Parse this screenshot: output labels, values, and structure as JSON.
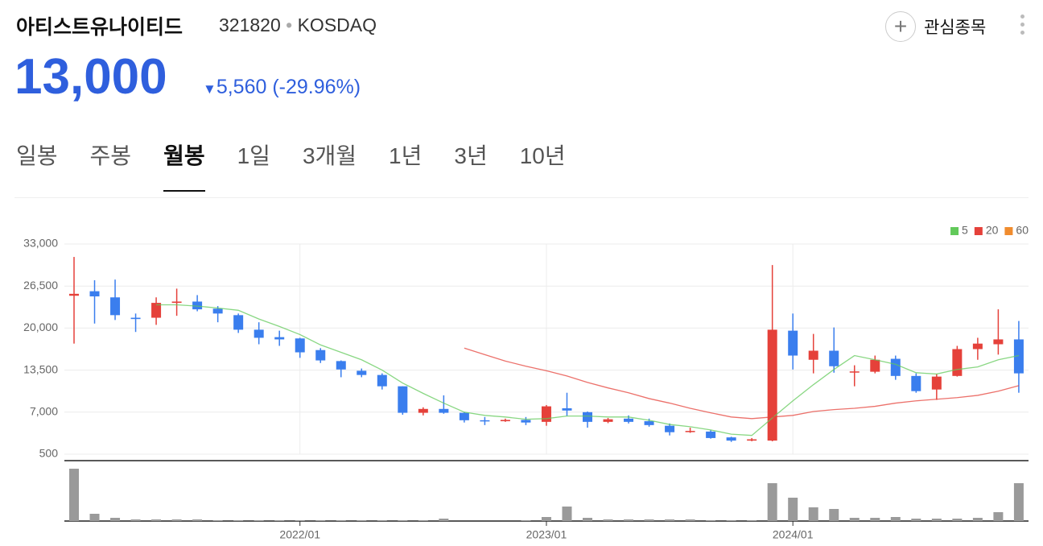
{
  "header": {
    "name": "아티스트유나이티드",
    "code": "321820",
    "market": "KOSDAQ",
    "watch": "관심종목",
    "price": "13,000",
    "change": "5,560",
    "change_pct": "(-29.96%)"
  },
  "tabs": [
    "일봉",
    "주봉",
    "월봉",
    "1일",
    "3개월",
    "1년",
    "3년",
    "10년"
  ],
  "active_tab": 2,
  "chart_data": {
    "type": "candlestick",
    "categories": [
      null,
      null,
      null,
      null,
      null,
      null,
      null,
      null,
      null,
      null,
      null,
      "2022/01",
      null,
      null,
      null,
      null,
      null,
      null,
      null,
      null,
      null,
      null,
      null,
      "2023/01",
      null,
      null,
      null,
      null,
      null,
      null,
      null,
      null,
      null,
      null,
      null,
      "2024/01",
      null,
      null,
      null,
      null,
      null,
      null,
      null,
      null,
      null,
      null,
      null
    ],
    "open": [
      25000,
      25700,
      24750,
      21600,
      21600,
      23900,
      24100,
      23000,
      22000,
      19750,
      18600,
      18400,
      16600,
      14900,
      13400,
      12750,
      11000,
      6900,
      7500,
      6900,
      5750,
      5600,
      5800,
      5500,
      7600,
      7000,
      5500,
      6000,
      5600,
      4900,
      4000,
      4000,
      3100,
      2600,
      2600,
      19600,
      15100,
      16500,
      13200,
      13250,
      15250,
      12600,
      10500,
      12600,
      16750,
      17500,
      18250
    ],
    "high": [
      31000,
      27400,
      27500,
      22250,
      24750,
      26100,
      25100,
      23400,
      22250,
      20900,
      19600,
      18500,
      16900,
      15000,
      13750,
      13000,
      11000,
      7750,
      9600,
      7000,
      6250,
      6000,
      6250,
      8100,
      10000,
      7100,
      6100,
      6500,
      6000,
      5250,
      4600,
      4200,
      3200,
      3000,
      29750,
      22250,
      19100,
      20100,
      14250,
      15750,
      15750,
      13000,
      12900,
      17250,
      18500,
      22900,
      21100
    ],
    "low": [
      17600,
      20700,
      21250,
      19400,
      20500,
      21900,
      22600,
      20900,
      19250,
      17500,
      17250,
      15400,
      14600,
      12400,
      12400,
      10500,
      6600,
      6500,
      6750,
      5400,
      5000,
      5500,
      5000,
      4900,
      6400,
      4600,
      5300,
      5250,
      4750,
      3400,
      3800,
      2900,
      2400,
      2500,
      2500,
      13600,
      13000,
      13100,
      11000,
      13000,
      12000,
      10000,
      8900,
      12500,
      15100,
      15900,
      10000
    ],
    "close": [
      25300,
      24900,
      22000,
      21400,
      23900,
      24100,
      22900,
      22250,
      19750,
      18500,
      18250,
      16250,
      15000,
      13600,
      12750,
      11000,
      6900,
      7500,
      6900,
      5750,
      5600,
      5800,
      5400,
      7900,
      7250,
      5500,
      5900,
      5500,
      5000,
      3900,
      4100,
      3000,
      2600,
      2800,
      19750,
      15750,
      16500,
      14100,
      13300,
      15100,
      12600,
      10250,
      12500,
      16750,
      17600,
      18250,
      13000
    ],
    "up_color": "#e5413a",
    "down_color": "#3a7eee",
    "ma": [
      {
        "name": "5",
        "color": "#62c95a",
        "values": [
          null,
          null,
          null,
          null,
          23600,
          23600,
          23400,
          23100,
          22750,
          21400,
          20250,
          19000,
          17400,
          16250,
          15100,
          13500,
          11500,
          9900,
          8400,
          7000,
          6500,
          6250,
          5900,
          6000,
          6400,
          6400,
          6250,
          6250,
          5750,
          5100,
          4750,
          4250,
          3600,
          3400,
          6100,
          8750,
          11250,
          13600,
          15750,
          15100,
          14400,
          13100,
          12900,
          13600,
          14000,
          15100,
          15750
        ]
      },
      {
        "name": "20",
        "color": "#e5413a",
        "values": [
          null,
          null,
          null,
          null,
          null,
          null,
          null,
          null,
          null,
          null,
          null,
          null,
          null,
          null,
          null,
          null,
          null,
          null,
          null,
          16900,
          15900,
          14900,
          14100,
          13400,
          12600,
          11600,
          10750,
          10000,
          9100,
          8400,
          7600,
          6900,
          6250,
          6000,
          6250,
          6500,
          7100,
          7400,
          7600,
          7900,
          8400,
          8750,
          9000,
          9250,
          9600,
          10250,
          11100
        ]
      },
      {
        "name": "60",
        "color": "#f08c2e"
      }
    ],
    "ylim": [
      500,
      33000
    ],
    "yticks": [
      {
        "value": 33000,
        "label": "33,000"
      },
      {
        "value": 26500,
        "label": "26,500"
      },
      {
        "value": 20000,
        "label": "20,000"
      },
      {
        "value": 13500,
        "label": "13,500"
      },
      {
        "value": 7000,
        "label": "7,000"
      },
      500
    ],
    "grid": true,
    "legend": "top-right",
    "volume": {
      "color": "#9a9a9a",
      "ylim": [
        0,
        65
      ],
      "values": [
        65,
        9,
        4,
        2,
        2,
        2,
        2,
        1,
        1,
        1,
        1,
        1,
        1,
        1,
        1,
        1,
        1,
        1,
        3,
        0,
        0,
        0,
        1,
        5,
        18,
        4,
        2,
        2,
        2,
        2,
        2,
        1,
        1,
        1,
        47,
        29,
        17,
        15,
        4,
        4,
        5,
        3,
        3,
        3,
        4,
        11,
        47
      ]
    }
  }
}
